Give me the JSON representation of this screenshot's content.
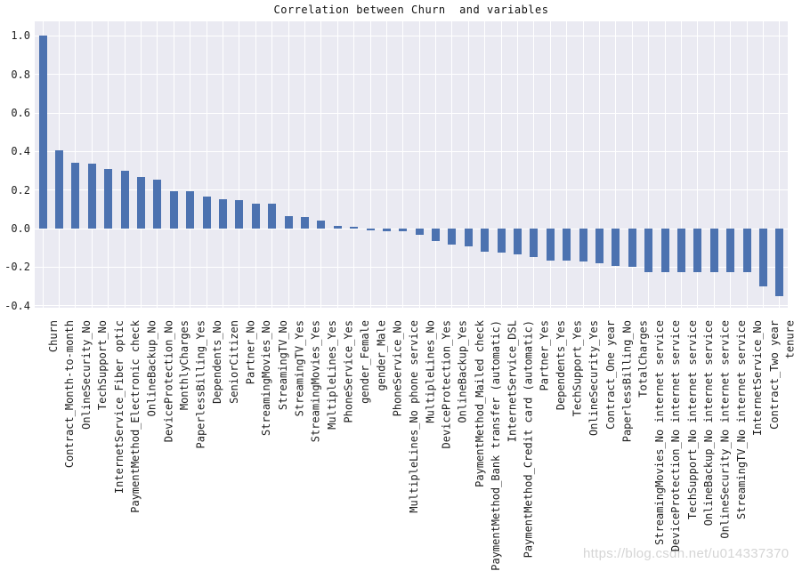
{
  "watermark": "https://blog.csdn.net/u014337370",
  "chart_data": {
    "type": "bar",
    "title": "Correlation between Churn  and variables",
    "xlabel": "",
    "ylabel": "",
    "legend": false,
    "grid": true,
    "ylim": [
      -0.411,
      1.076
    ],
    "yticks": [
      1.0,
      0.8,
      0.6,
      0.4,
      0.2,
      0.0,
      -0.2,
      -0.4
    ],
    "ytick_labels": [
      "1.0",
      "0.8",
      "0.6",
      "0.4",
      "0.2",
      "0.0",
      "-0.2",
      "-0.4"
    ],
    "bar_color": "#4C72B0",
    "plot_bg": "#EAEAF2",
    "grid_color": "#FFFFFF",
    "categories": [
      "Churn",
      "Contract_Month-to-month",
      "OnlineSecurity_No",
      "TechSupport_No",
      "InternetService_Fiber optic",
      "PaymentMethod_Electronic check",
      "OnlineBackup_No",
      "DeviceProtection_No",
      "MonthlyCharges",
      "PaperlessBilling_Yes",
      "Dependents_No",
      "SeniorCitizen",
      "Partner_No",
      "StreamingMovies_No",
      "StreamingTV_No",
      "StreamingTV_Yes",
      "StreamingMovies_Yes",
      "MultipleLines_Yes",
      "PhoneService_Yes",
      "gender_Female",
      "gender_Male",
      "PhoneService_No",
      "MultipleLines_No phone service",
      "MultipleLines_No",
      "DeviceProtection_Yes",
      "OnlineBackup_Yes",
      "PaymentMethod_Mailed check",
      "PaymentMethod_Bank transfer (automatic)",
      "InternetService_DSL",
      "PaymentMethod_Credit card (automatic)",
      "Partner_Yes",
      "Dependents_Yes",
      "TechSupport_Yes",
      "OnlineSecurity_Yes",
      "Contract_One year",
      "PaperlessBilling_No",
      "TotalCharges",
      "StreamingMovies_No internet service",
      "DeviceProtection_No internet service",
      "TechSupport_No internet service",
      "OnlineBackup_No internet service",
      "OnlineSecurity_No internet service",
      "StreamingTV_No internet service",
      "InternetService_No",
      "Contract_Two year",
      "tenure"
    ],
    "values": [
      1.0,
      0.405,
      0.343,
      0.337,
      0.308,
      0.302,
      0.268,
      0.252,
      0.193,
      0.192,
      0.164,
      0.151,
      0.15,
      0.13,
      0.128,
      0.063,
      0.061,
      0.04,
      0.012,
      0.009,
      -0.009,
      -0.012,
      -0.012,
      -0.033,
      -0.066,
      -0.082,
      -0.091,
      -0.118,
      -0.124,
      -0.134,
      -0.15,
      -0.164,
      -0.165,
      -0.171,
      -0.178,
      -0.192,
      -0.199,
      -0.228,
      -0.228,
      -0.228,
      -0.228,
      -0.228,
      -0.228,
      -0.228,
      -0.302,
      -0.352
    ]
  }
}
